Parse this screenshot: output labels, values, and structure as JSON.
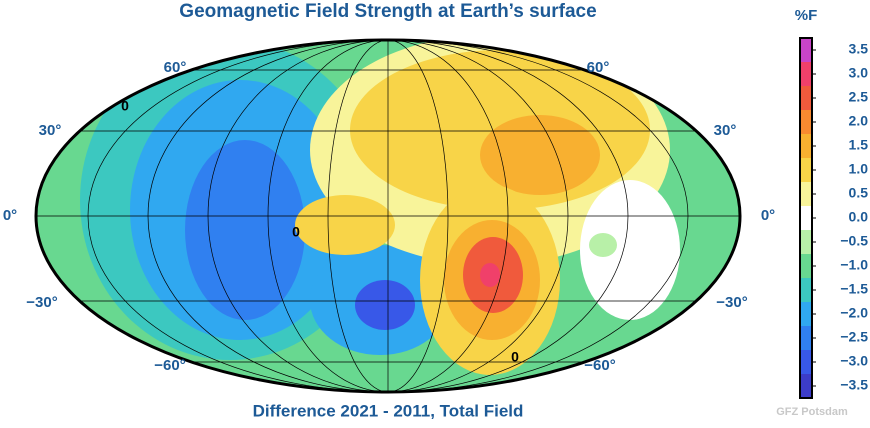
{
  "title": "Geomagnetic Field Strength at Earth’s surface",
  "subtitle": "Difference 2021 - 2011, Total Field",
  "credit": "GFZ Potsdam",
  "latitude_labels": {
    "left": [
      "60°",
      "30°",
      "0°",
      "−30°",
      "−60°"
    ],
    "right": [
      "60°",
      "30°",
      "0°",
      "−30°",
      "−60°"
    ]
  },
  "contour_labels": [
    "0",
    "0",
    "0"
  ],
  "colorbar": {
    "label": "%F",
    "lim": [
      -3.75,
      3.75
    ],
    "ticks": [
      3.5,
      {
        "value": 3,
        "label": "3.0"
      },
      2.5,
      {
        "value": 2,
        "label": "2.0"
      },
      1.5,
      {
        "value": 1,
        "label": "1.0"
      },
      0.5,
      {
        "value": 0,
        "label": "0.0"
      },
      {
        "value": -0.5,
        "label": "−0.5"
      },
      {
        "value": -1,
        "label": "−1.0"
      },
      {
        "value": -1.5,
        "label": "−1.5"
      },
      {
        "value": -2,
        "label": "−2.0"
      },
      {
        "value": -2.5,
        "label": "−2.5"
      },
      {
        "value": -3,
        "label": "−3.0"
      },
      {
        "value": -3.5,
        "label": "−3.5"
      }
    ],
    "colors": [
      "#c844c8",
      "#f0406a",
      "#f05a3c",
      "#f88a30",
      "#f8b030",
      "#f8d448",
      "#f8f49a",
      "#ffffff",
      "#b8f0a8",
      "#68d890",
      "#3cc8c0",
      "#30a8f0",
      "#3080f0",
      "#3858e8",
      "#3c3cc8"
    ]
  }
}
